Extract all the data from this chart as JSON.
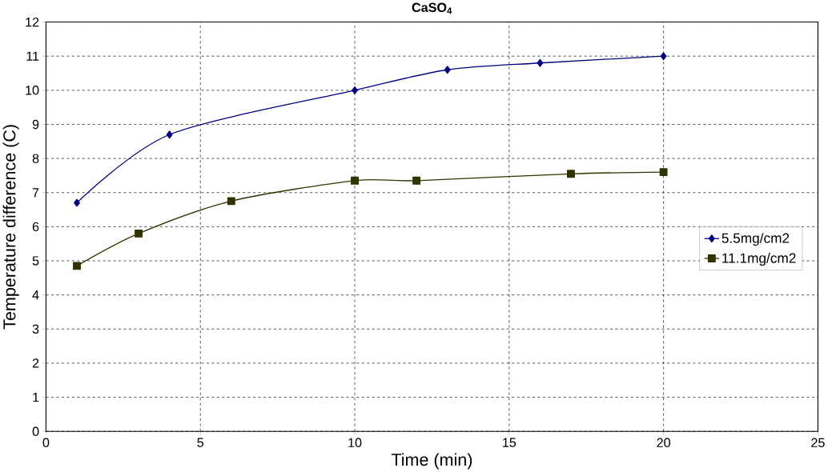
{
  "chart_data": {
    "type": "line",
    "title": "CaSO$_{4}$",
    "xlabel": "Time (min)",
    "ylabel": "Temperature difference (C)",
    "xlim": [
      0,
      25
    ],
    "xticks": [
      0,
      5,
      10,
      15,
      20,
      25
    ],
    "ylim": [
      0,
      12
    ],
    "yticks": [
      0,
      1,
      2,
      3,
      4,
      5,
      6,
      7,
      8,
      9,
      10,
      11,
      12
    ],
    "grid": true,
    "legend": "right",
    "line_style": "solid",
    "series": [
      {
        "name": "5.5mg/cm2",
        "color": "#000080",
        "marker": "diamond",
        "x": [
          1,
          4,
          10,
          13,
          16,
          20
        ],
        "values": [
          6.7,
          8.7,
          10.0,
          10.6,
          10.8,
          11.0
        ]
      },
      {
        "name": "11.1mg/cm2",
        "color": "#333300",
        "marker": "square",
        "x": [
          1,
          3,
          6,
          10,
          12,
          17,
          20
        ],
        "values": [
          4.85,
          5.8,
          6.75,
          7.35,
          7.35,
          7.55,
          7.6
        ]
      }
    ]
  }
}
